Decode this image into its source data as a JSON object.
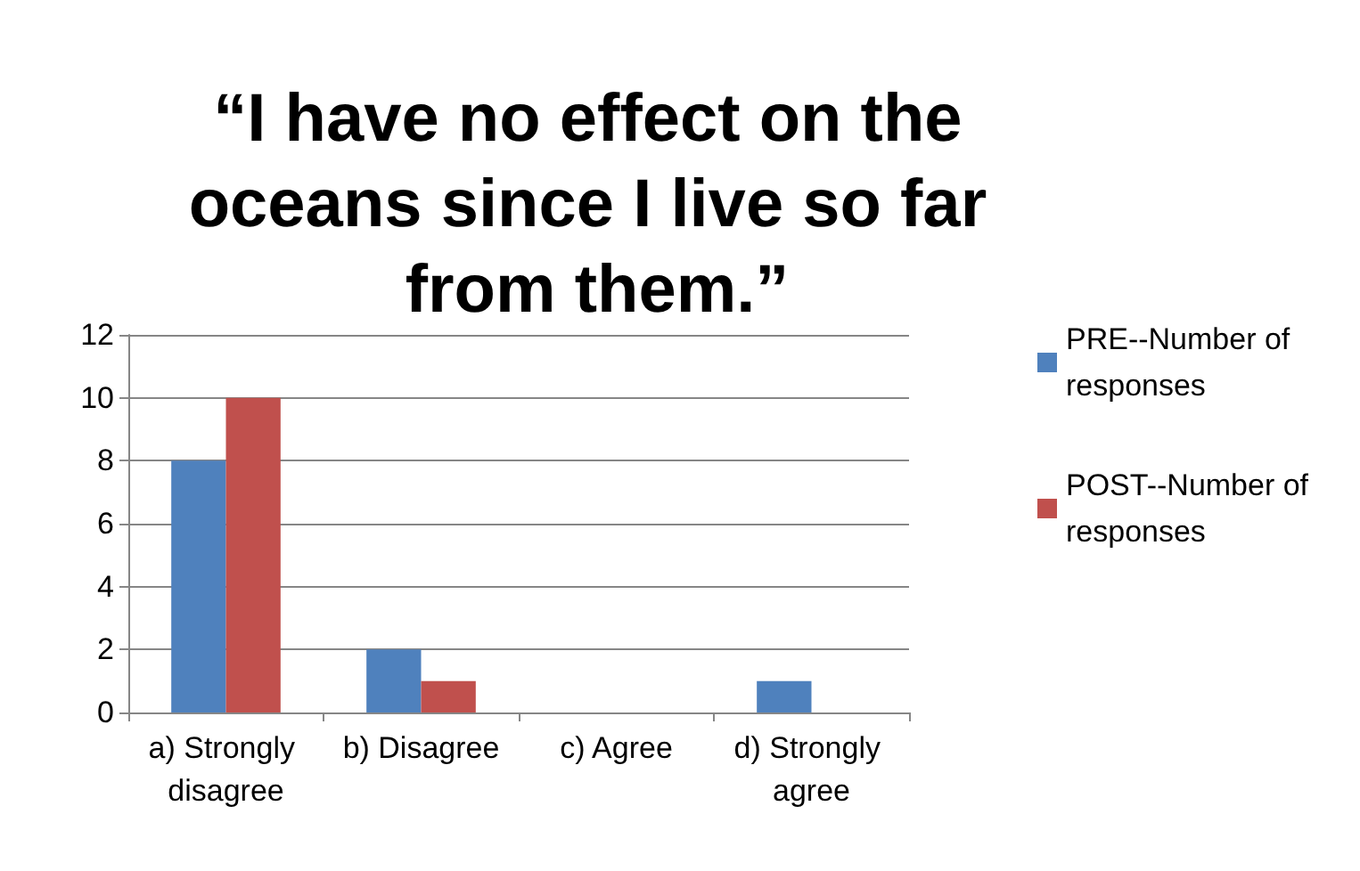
{
  "chart_data": {
    "type": "bar",
    "title": "“I have no effect on the oceans since I live so far from them.”",
    "categories": [
      "a) Strongly disagree",
      "b) Disagree",
      "c) Agree",
      "d) Strongly agree"
    ],
    "series": [
      {
        "name": "PRE--Number of responses",
        "color": "#4f81bd",
        "values": [
          8,
          2,
          0,
          1
        ]
      },
      {
        "name": "POST--Number of responses",
        "color": "#c0504d",
        "values": [
          10,
          1,
          0,
          0
        ]
      }
    ],
    "ylim": [
      0,
      12
    ],
    "yticks": [
      0,
      2,
      4,
      6,
      8,
      10,
      12
    ],
    "grid": "y",
    "legend": "right"
  }
}
